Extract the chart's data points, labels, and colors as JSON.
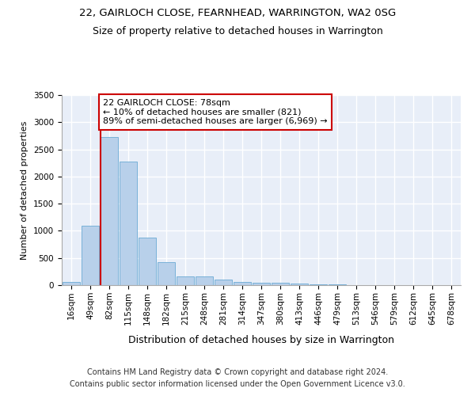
{
  "title": "22, GAIRLOCH CLOSE, FEARNHEAD, WARRINGTON, WA2 0SG",
  "subtitle": "Size of property relative to detached houses in Warrington",
  "xlabel": "Distribution of detached houses by size in Warrington",
  "ylabel": "Number of detached properties",
  "categories": [
    "16sqm",
    "49sqm",
    "82sqm",
    "115sqm",
    "148sqm",
    "182sqm",
    "215sqm",
    "248sqm",
    "281sqm",
    "314sqm",
    "347sqm",
    "380sqm",
    "413sqm",
    "446sqm",
    "479sqm",
    "513sqm",
    "546sqm",
    "579sqm",
    "612sqm",
    "645sqm",
    "678sqm"
  ],
  "values": [
    55,
    1100,
    2730,
    2280,
    870,
    430,
    165,
    165,
    95,
    60,
    50,
    40,
    25,
    15,
    20,
    0,
    0,
    0,
    0,
    0,
    0
  ],
  "bar_color": "#b8d0ea",
  "bar_edge_color": "#6aaad4",
  "background_color": "#e8eef8",
  "grid_color": "#ffffff",
  "marker_color": "#cc0000",
  "annotation_text": "22 GAIRLOCH CLOSE: 78sqm\n← 10% of detached houses are smaller (821)\n89% of semi-detached houses are larger (6,969) →",
  "annotation_box_color": "#cc0000",
  "ylim": [
    0,
    3500
  ],
  "yticks": [
    0,
    500,
    1000,
    1500,
    2000,
    2500,
    3000,
    3500
  ],
  "footer_line1": "Contains HM Land Registry data © Crown copyright and database right 2024.",
  "footer_line2": "Contains public sector information licensed under the Open Government Licence v3.0.",
  "title_fontsize": 9.5,
  "subtitle_fontsize": 9,
  "xlabel_fontsize": 9,
  "ylabel_fontsize": 8,
  "tick_fontsize": 7.5,
  "annotation_fontsize": 8,
  "footer_fontsize": 7
}
